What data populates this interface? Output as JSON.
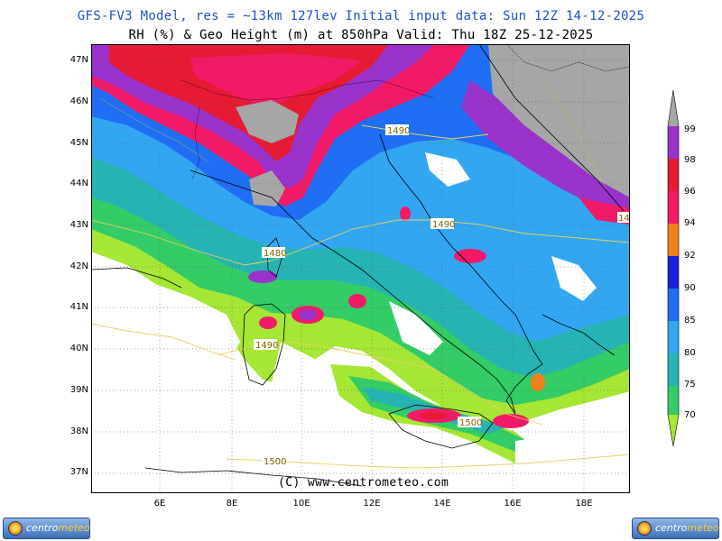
{
  "header": {
    "line1": "GFS-FV3 Model, res = ~13km 127lev    Initial input data: Sun 12Z 14-12-2025",
    "line2": "RH (%) & Geo Height (m) at 850hPa  Valid: Thu 18Z 25-12-2025"
  },
  "map": {
    "lat_labels": [
      "47N",
      "46N",
      "45N",
      "44N",
      "43N",
      "42N",
      "41N",
      "40N",
      "39N",
      "38N",
      "37N"
    ],
    "lon_labels": [
      "6E",
      "8E",
      "10E",
      "12E",
      "14E",
      "16E",
      "18E"
    ],
    "contour_labels": [
      "1490",
      "1490",
      "1480",
      "1490",
      "1500",
      "1500",
      "14"
    ],
    "watermark": "(C) www.centrometeo.com",
    "fill_colors": {
      "70": "#a6e634",
      "75": "#33cc66",
      "80": "#26b3b3",
      "85": "#33a6f2",
      "90": "#1f6ef5",
      "92": "#1f1fd9",
      "94": "#f2801a",
      "96": "#f21a66",
      "98": "#e61a33",
      "99": "#9933cc",
      "over": "#a6a6a6"
    }
  },
  "colorbar": {
    "levels": [
      "99",
      "98",
      "96",
      "94",
      "92",
      "90",
      "85",
      "80",
      "75",
      "70"
    ]
  },
  "logos": {
    "left": {
      "word1": "centro",
      "word2": "meteo"
    },
    "right": {
      "word1": "centro",
      "word2": "meteo"
    }
  }
}
